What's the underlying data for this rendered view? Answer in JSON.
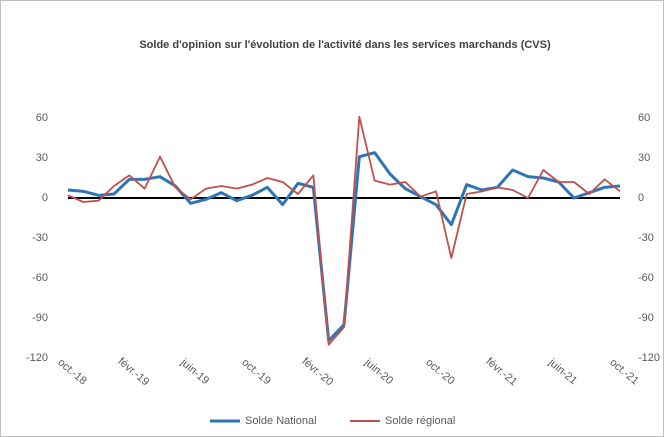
{
  "chart_data": {
    "type": "line",
    "title": "Solde d'opinion sur l'évolution de l'activité dans les services marchands (CVS)",
    "categories": [
      "oct.-18",
      null,
      null,
      null,
      "févr.-19",
      null,
      null,
      null,
      "juin-19",
      null,
      null,
      null,
      "oct.-19",
      null,
      null,
      null,
      "févr.-20",
      null,
      null,
      null,
      "juin-20",
      null,
      null,
      null,
      "oct.-20",
      null,
      null,
      null,
      "févr.-21",
      null,
      null,
      null,
      "juin-21",
      null,
      null,
      null,
      "oct.-21"
    ],
    "series": [
      {
        "name": "Solde National",
        "color": "#2e75b6",
        "values": [
          6,
          5,
          2,
          3,
          14,
          14,
          16,
          9,
          -4,
          -1,
          4,
          -2,
          2,
          8,
          -5,
          11,
          8,
          -107,
          -95,
          31,
          34,
          18,
          7,
          1,
          -5,
          -20,
          10,
          6,
          8,
          21,
          16,
          15,
          12,
          0,
          4,
          8,
          9
        ]
      },
      {
        "name": "Solde régional",
        "color": "#c0504d",
        "values": [
          2,
          -3,
          -2,
          9,
          17,
          7,
          31,
          8,
          -1,
          7,
          9,
          7,
          10,
          15,
          12,
          3,
          17,
          -110,
          -97,
          61,
          13,
          10,
          12,
          1,
          5,
          -45,
          3,
          5,
          8,
          6,
          0,
          21,
          12,
          12,
          3,
          14,
          5
        ]
      }
    ],
    "ylim": [
      -120,
      60
    ],
    "yticks": [
      -120,
      -90,
      -60,
      -30,
      0,
      30,
      60
    ],
    "y2lim": [
      -120,
      60
    ],
    "y2ticks": [
      -120,
      -90,
      -60,
      -30,
      0,
      30,
      60
    ],
    "legend": "bottom"
  }
}
